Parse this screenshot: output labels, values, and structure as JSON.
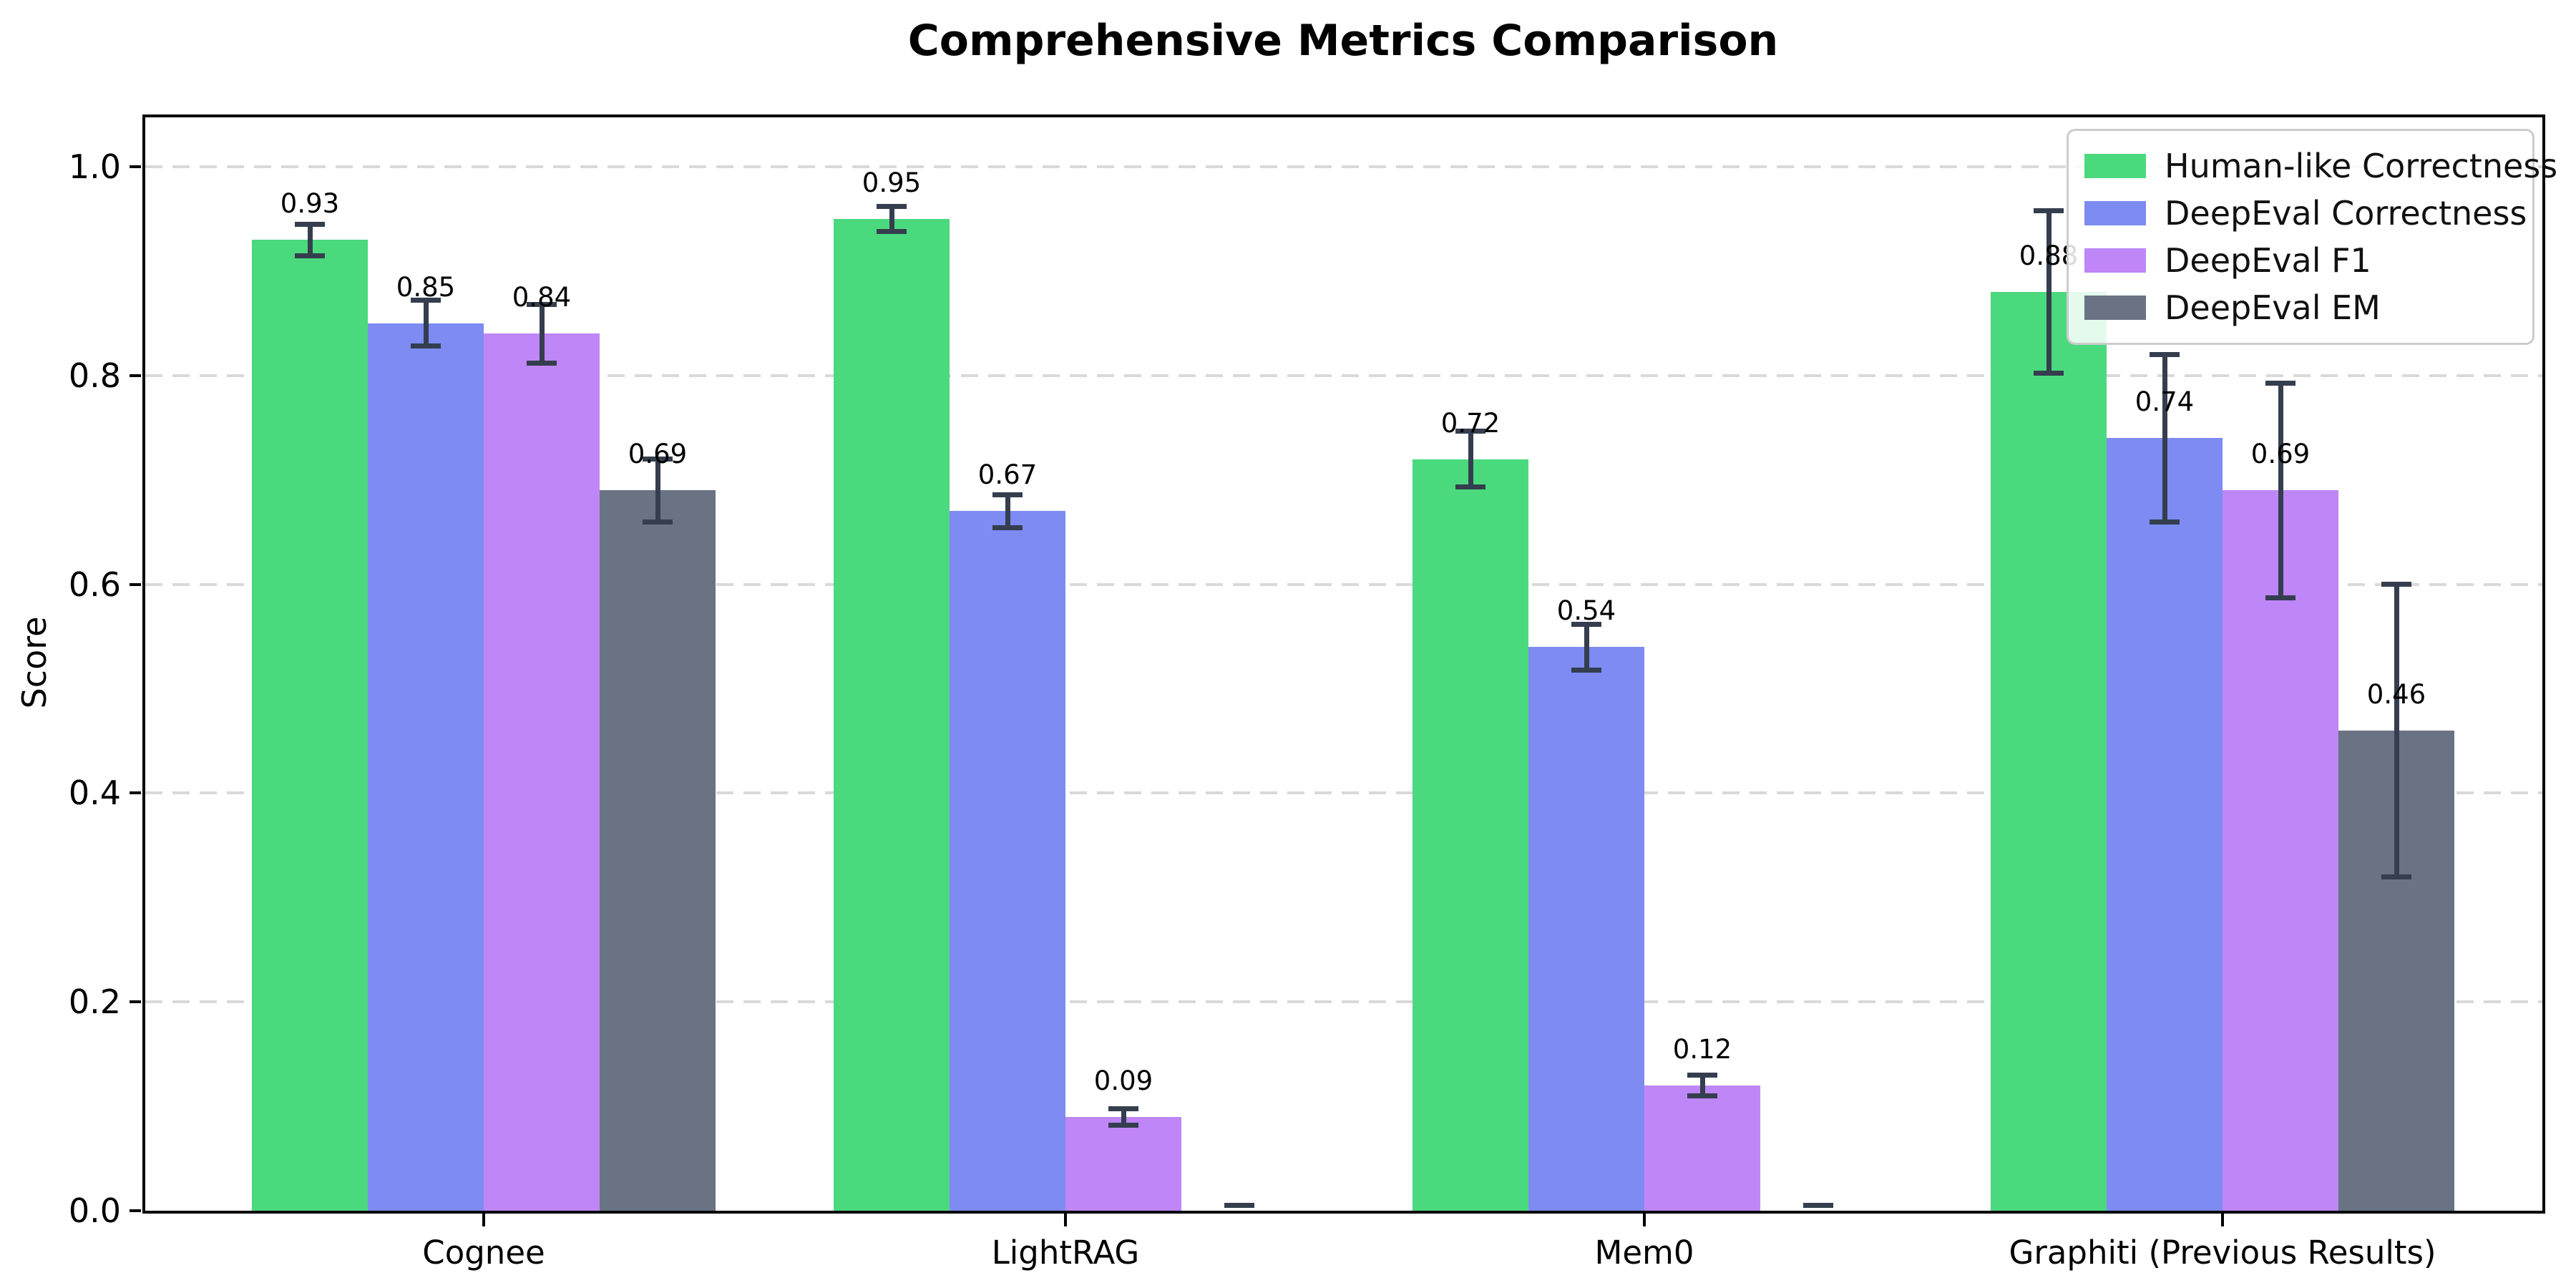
{
  "chart_data": {
    "type": "bar",
    "title": "Comprehensive Metrics Comparison",
    "ylabel": "Score",
    "xlabel": "",
    "ylim": [
      0,
      1.05
    ],
    "yticks": [
      "0.0",
      "0.2",
      "0.4",
      "0.6",
      "0.8",
      "1.0"
    ],
    "grid": "horizontal-dashed",
    "grid_color": "#d9d9d9",
    "legend_position": "upper-right",
    "background_color": "#ffffff",
    "spine_color": "#000000",
    "error_bar_color": "#343e4e",
    "categories": [
      "Cognee",
      "LightRAG",
      "Mem0",
      "Graphiti (Previous Results)"
    ],
    "series": [
      {
        "name": "Human-like Correctness",
        "color": "#4bd97e",
        "values": [
          0.93,
          0.95,
          0.72,
          0.88
        ],
        "errors": [
          0.015,
          0.012,
          0.027,
          0.078
        ],
        "labels": [
          "0.93",
          "0.95",
          "0.72",
          "0.88"
        ]
      },
      {
        "name": "DeepEval Correctness",
        "color": "#7d8bf2",
        "values": [
          0.85,
          0.67,
          0.54,
          0.74
        ],
        "errors": [
          0.022,
          0.016,
          0.022,
          0.08
        ],
        "labels": [
          "0.85",
          "0.67",
          "0.54",
          "0.74"
        ]
      },
      {
        "name": "DeepEval F1",
        "color": "#be86f6",
        "values": [
          0.84,
          0.09,
          0.12,
          0.69
        ],
        "errors": [
          0.028,
          0.008,
          0.01,
          0.103
        ],
        "labels": [
          "0.84",
          "0.09",
          "0.12",
          "0.69"
        ]
      },
      {
        "name": "DeepEval EM",
        "color": "#6a7383",
        "values": [
          0.69,
          0.0,
          0.0,
          0.46
        ],
        "errors": [
          0.03,
          0.005,
          0.005,
          0.14
        ],
        "labels": [
          "0.69",
          null,
          null,
          "0.46"
        ]
      }
    ]
  }
}
